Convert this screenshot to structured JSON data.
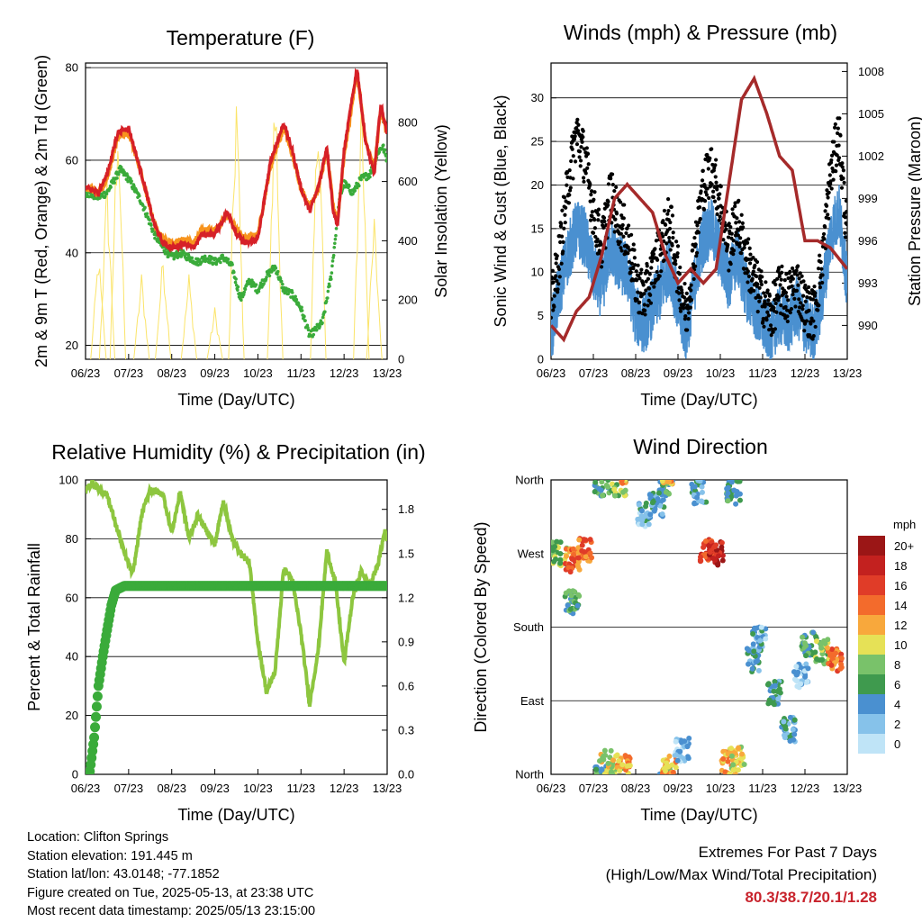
{
  "chart_data": [
    {
      "id": "temperature",
      "type": "line",
      "title": "Temperature (F)",
      "xlabel": "Time (Day/UTC)",
      "ylabel": "2m & 9m T (Red, Orange) & 2m Td (Green)",
      "ylabel2": "Solar Insolation (Yellow)",
      "x": [
        "06/23",
        "07/23",
        "08/23",
        "09/23",
        "10/23",
        "11/23",
        "12/23",
        "13/23"
      ],
      "ylim": [
        17,
        81
      ],
      "yticks": [
        20,
        40,
        60,
        80
      ],
      "y2lim": [
        0,
        1000
      ],
      "y2ticks": [
        0,
        200,
        400,
        600,
        800
      ],
      "series": [
        {
          "color": "#d62027",
          "t": [
            0,
            0.3,
            0.5,
            0.75,
            1.0,
            1.3,
            1.6,
            1.8,
            2.0,
            2.3,
            2.5,
            2.7,
            3.0,
            3.3,
            3.5,
            3.7,
            4.0,
            4.3,
            4.6,
            4.8,
            5.0,
            5.2,
            5.4,
            5.6,
            5.75,
            5.85,
            6.0,
            6.3,
            6.5,
            6.7,
            6.85,
            7.0
          ],
          "v": [
            54,
            53,
            57,
            66,
            67,
            57,
            46,
            42,
            41,
            42,
            41,
            44,
            44,
            49,
            44,
            42,
            43,
            60,
            68,
            62,
            54,
            49,
            54,
            63,
            49,
            46,
            62,
            80,
            64,
            57,
            72,
            66
          ]
        },
        {
          "color": "#f7941d",
          "t": [
            0,
            0.3,
            0.5,
            0.75,
            1.0,
            1.3,
            1.6,
            1.8,
            2.0,
            2.3,
            2.5,
            2.7,
            3.0,
            3.3,
            3.5,
            3.7,
            4.0,
            4.3,
            4.6,
            4.8,
            5.0,
            5.2,
            5.4,
            5.6,
            5.75,
            5.85,
            6.0,
            6.3,
            6.5,
            6.7,
            6.85,
            7.0
          ],
          "v": [
            54,
            53,
            56,
            65,
            66,
            57,
            46,
            43,
            42,
            43,
            42,
            45,
            45,
            48,
            45,
            43,
            44,
            59,
            67,
            61,
            54,
            50,
            54,
            62,
            50,
            47,
            61,
            79,
            64,
            58,
            71,
            66
          ]
        },
        {
          "color": "#3aab3a",
          "t": [
            0,
            0.3,
            0.5,
            0.8,
            1.0,
            1.3,
            1.6,
            1.8,
            2.0,
            2.2,
            2.4,
            2.6,
            2.8,
            3.0,
            3.2,
            3.4,
            3.6,
            3.8,
            4.0,
            4.2,
            4.4,
            4.6,
            4.8,
            5.0,
            5.2,
            5.5,
            5.7,
            5.9,
            6.0,
            6.2,
            6.4,
            6.6,
            6.8,
            6.9,
            7.0
          ],
          "v": [
            53,
            52,
            53,
            58,
            56,
            51,
            44,
            41,
            39,
            40,
            39,
            38,
            39,
            38,
            39,
            37,
            30,
            34,
            32,
            35,
            37,
            32,
            31,
            28,
            22,
            25,
            35,
            52,
            55,
            53,
            56,
            57,
            62,
            63,
            60
          ]
        },
        {
          "color": "#fbe469",
          "axis": "y2",
          "peaks": [
            [
              0.3,
              380
            ],
            [
              0.5,
              640
            ],
            [
              0.75,
              940
            ],
            [
              1.3,
              300
            ],
            [
              1.8,
              380
            ],
            [
              2.4,
              300
            ],
            [
              3.0,
              180
            ],
            [
              3.5,
              980
            ],
            [
              4.4,
              1000
            ],
            [
              5.4,
              1000
            ],
            [
              6.4,
              1000
            ],
            [
              6.7,
              500
            ]
          ]
        }
      ]
    },
    {
      "id": "winds",
      "type": "scatter",
      "title": "Winds (mph) & Pressure (mb)",
      "xlabel": "Time (Day/UTC)",
      "ylabel": "Sonic Wind & Gust (Blue, Black)",
      "ylabel2": "Station Pressure (Maroon)",
      "x": [
        "06/23",
        "07/23",
        "08/23",
        "09/23",
        "10/23",
        "11/23",
        "12/23",
        "13/23"
      ],
      "ylim": [
        0,
        34
      ],
      "yticks": [
        0,
        5,
        10,
        15,
        20,
        25,
        30
      ],
      "y2lim": [
        987.6,
        1008.6
      ],
      "y2ticks": [
        990,
        993,
        996,
        999,
        1002,
        1005,
        1008
      ],
      "series": [
        {
          "color": "#4a90d0",
          "t": [
            0,
            0.2,
            0.4,
            0.6,
            0.8,
            1.0,
            1.2,
            1.4,
            1.6,
            1.8,
            2.0,
            2.2,
            2.4,
            2.6,
            2.8,
            3.0,
            3.2,
            3.4,
            3.6,
            3.8,
            4.0,
            4.2,
            4.4,
            4.6,
            4.8,
            5.0,
            5.2,
            5.4,
            5.6,
            5.8,
            6.0,
            6.2,
            6.4,
            6.6,
            6.8,
            7.0
          ],
          "v": [
            3,
            8,
            12,
            15,
            14,
            10,
            8,
            13,
            11,
            10,
            5,
            4,
            6,
            8,
            11,
            6,
            3,
            9,
            14,
            15,
            12,
            9,
            12,
            8,
            6,
            4,
            3,
            5,
            4,
            6,
            4,
            3,
            7,
            14,
            17,
            9
          ]
        },
        {
          "color": "#000000",
          "t": [
            0,
            0.2,
            0.4,
            0.6,
            0.8,
            1.0,
            1.2,
            1.4,
            1.6,
            1.8,
            2.0,
            2.2,
            2.4,
            2.6,
            2.8,
            3.0,
            3.2,
            3.4,
            3.6,
            3.8,
            4.0,
            4.2,
            4.4,
            4.6,
            4.8,
            5.0,
            5.2,
            5.4,
            5.6,
            5.8,
            6.0,
            6.2,
            6.4,
            6.6,
            6.8,
            7.0
          ],
          "v": [
            6,
            12,
            20,
            26,
            23,
            17,
            13,
            19,
            16,
            14,
            9,
            7,
            10,
            13,
            16,
            10,
            5,
            13,
            20,
            22,
            18,
            13,
            16,
            12,
            9,
            7,
            5,
            8,
            7,
            9,
            6,
            5,
            11,
            21,
            26,
            14
          ]
        },
        {
          "color": "#a52a2a",
          "axis": "y2",
          "t": [
            0,
            0.3,
            0.6,
            0.9,
            1.2,
            1.5,
            1.8,
            2.1,
            2.4,
            2.7,
            3.0,
            3.3,
            3.6,
            3.9,
            4.2,
            4.5,
            4.8,
            5.1,
            5.4,
            5.7,
            6.0,
            6.3,
            6.6,
            7.0
          ],
          "v": [
            990,
            989,
            991,
            992,
            995,
            999,
            1000,
            999,
            998,
            995,
            993,
            994,
            993,
            994,
            1000,
            1006,
            1007.5,
            1005,
            1002,
            1001,
            996,
            996,
            995.5,
            994
          ]
        }
      ]
    },
    {
      "id": "humidity",
      "type": "line",
      "title": "Relative Humidity (%) & Precipitation (in)",
      "xlabel": "Time (Day/UTC)",
      "ylabel": "Percent & Total Rainfall",
      "x": [
        "06/23",
        "07/23",
        "08/23",
        "09/23",
        "10/23",
        "11/23",
        "12/23",
        "13/23"
      ],
      "ylim": [
        0,
        100
      ],
      "yticks": [
        0,
        20,
        40,
        60,
        80,
        100
      ],
      "y2lim": [
        0,
        2.0
      ],
      "y2ticks": [
        0.0,
        0.3,
        0.6,
        0.9,
        1.2,
        1.5,
        1.8
      ],
      "series": [
        {
          "color": "#8dc63f",
          "t": [
            0,
            0.15,
            0.3,
            0.5,
            0.7,
            0.9,
            1.1,
            1.3,
            1.5,
            1.8,
            2.0,
            2.2,
            2.4,
            2.6,
            2.8,
            3.0,
            3.2,
            3.4,
            3.6,
            3.8,
            4.0,
            4.2,
            4.4,
            4.6,
            4.8,
            5.0,
            5.2,
            5.4,
            5.6,
            5.8,
            6.0,
            6.2,
            6.4,
            6.6,
            6.8,
            6.95,
            7.0
          ],
          "v": [
            96,
            99,
            97,
            95,
            85,
            75,
            68,
            88,
            97,
            95,
            82,
            96,
            80,
            88,
            83,
            78,
            93,
            80,
            75,
            72,
            45,
            28,
            35,
            70,
            66,
            48,
            24,
            42,
            76,
            65,
            38,
            60,
            69,
            64,
            72,
            83,
            80
          ]
        },
        {
          "color": "#3aab3a",
          "axis": "y2",
          "t": [
            0,
            0.1,
            0.2,
            0.3,
            0.4,
            0.5,
            0.6,
            0.7,
            0.9,
            1.0,
            2.0,
            3.0,
            4.0,
            5.0,
            6.0,
            7.0
          ],
          "v": [
            0,
            0.02,
            0.25,
            0.6,
            0.8,
            0.98,
            1.15,
            1.25,
            1.28,
            1.28,
            1.28,
            1.28,
            1.28,
            1.28,
            1.28,
            1.28
          ]
        }
      ]
    },
    {
      "id": "direction",
      "type": "scatter",
      "title": "Wind Direction",
      "xlabel": "Time (Day/UTC)",
      "ylabel": "Direction (Colored By Speed)",
      "x": [
        "06/23",
        "07/23",
        "08/23",
        "09/23",
        "10/23",
        "11/23",
        "12/23",
        "13/23"
      ],
      "yticks": [
        "North",
        "East",
        "South",
        "West",
        "North"
      ],
      "ylim": [
        0,
        360
      ],
      "colorbar": {
        "title": "mph",
        "levels": [
          "0",
          "2",
          "4",
          "6",
          "8",
          "10",
          "12",
          "14",
          "16",
          "18",
          "20+"
        ],
        "colors": [
          "#bfe4f7",
          "#86c2ea",
          "#4a90d0",
          "#3f9a4e",
          "#79c26a",
          "#e6e156",
          "#f8a83c",
          "#f36b2c",
          "#e03c28",
          "#c3211f",
          "#9b1616"
        ]
      },
      "clusters": [
        {
          "t": 0.2,
          "dir": 270,
          "spd": 8
        },
        {
          "t": 0.5,
          "dir": 262,
          "spd": 14
        },
        {
          "t": 0.8,
          "dir": 274,
          "spd": 14
        },
        {
          "t": 0.5,
          "dir": 210,
          "spd": 6
        },
        {
          "t": 1.2,
          "dir": 355,
          "spd": 6
        },
        {
          "t": 1.6,
          "dir": 355,
          "spd": 8
        },
        {
          "t": 1.3,
          "dir": 15,
          "spd": 10
        },
        {
          "t": 1.7,
          "dir": 10,
          "spd": 12
        },
        {
          "t": 2.2,
          "dir": 318,
          "spd": 3
        },
        {
          "t": 2.5,
          "dir": 330,
          "spd": 3
        },
        {
          "t": 2.7,
          "dir": 355,
          "spd": 6
        },
        {
          "t": 2.8,
          "dir": 10,
          "spd": 12
        },
        {
          "t": 3.1,
          "dir": 30,
          "spd": 2
        },
        {
          "t": 3.5,
          "dir": 345,
          "spd": 4
        },
        {
          "t": 3.7,
          "dir": 275,
          "spd": 16
        },
        {
          "t": 3.9,
          "dir": 270,
          "spd": 18
        },
        {
          "t": 4.2,
          "dir": 15,
          "spd": 12
        },
        {
          "t": 4.3,
          "dir": 345,
          "spd": 6
        },
        {
          "t": 4.4,
          "dir": 20,
          "spd": 10
        },
        {
          "t": 4.8,
          "dir": 140,
          "spd": 4
        },
        {
          "t": 4.9,
          "dir": 165,
          "spd": 3
        },
        {
          "t": 5.3,
          "dir": 100,
          "spd": 4
        },
        {
          "t": 5.6,
          "dir": 55,
          "spd": 4
        },
        {
          "t": 5.9,
          "dir": 120,
          "spd": 2
        },
        {
          "t": 6.1,
          "dir": 160,
          "spd": 6
        },
        {
          "t": 6.4,
          "dir": 150,
          "spd": 8
        },
        {
          "t": 6.7,
          "dir": 140,
          "spd": 14
        }
      ]
    }
  ],
  "station": {
    "location": "Location: Clifton Springs",
    "elevation": "Station elevation: 191.445 m",
    "latlon": "Station lat/lon: 43.0148; -77.1852",
    "created": "Figure created on Tue, 2025-05-13, at 23:38 UTC",
    "latest": "Most recent data timestamp: 2025/05/13 23:15:00"
  },
  "extremes": {
    "heading": "Extremes For Past 7 Days",
    "legend": "(High/Low/Max Wind/Total Precipitation)",
    "values": "80.3/38.7/20.1/1.28"
  }
}
